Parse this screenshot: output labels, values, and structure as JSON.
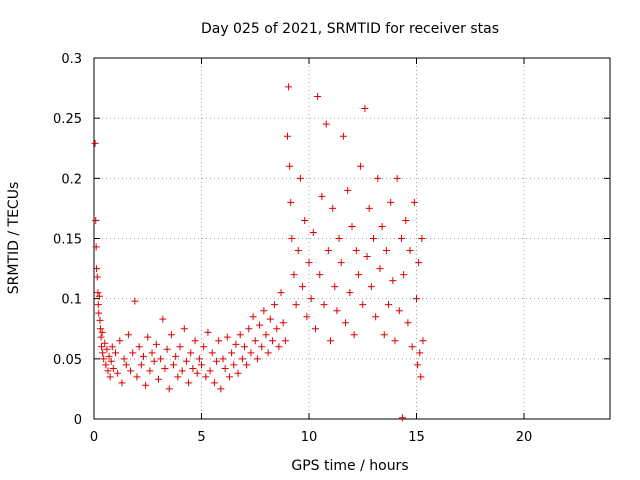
{
  "colors": {
    "series": "#e00000",
    "axis": "#000000",
    "grid": "#a0a0a0"
  },
  "chart_data": {
    "type": "scatter",
    "title": "Day 025 of 2021, SRMTID for receiver stas",
    "xlabel": "GPS time / hours",
    "ylabel": "SRMTID / TECUs",
    "xlim": [
      0,
      24
    ],
    "ylim": [
      0,
      0.3
    ],
    "x_ticks": [
      0,
      5,
      10,
      15,
      20
    ],
    "x_tick_labels": [
      "0",
      "5",
      "10",
      "15",
      "20"
    ],
    "y_ticks": [
      0,
      0.05,
      0.1,
      0.15,
      0.2,
      0.25,
      0.3
    ],
    "y_tick_labels": [
      "0",
      "0.05",
      "0.1",
      "0.15",
      "0.2",
      "0.25",
      "0.3"
    ],
    "grid": true,
    "marker": "plus",
    "series": [
      {
        "name": "SRMTID",
        "points": [
          [
            0.05,
            0.229
          ],
          [
            0.08,
            0.165
          ],
          [
            0.1,
            0.143
          ],
          [
            0.12,
            0.125
          ],
          [
            0.15,
            0.118
          ],
          [
            0.18,
            0.105
          ],
          [
            0.2,
            0.095
          ],
          [
            0.22,
            0.088
          ],
          [
            0.25,
            0.102
          ],
          [
            0.28,
            0.082
          ],
          [
            0.3,
            0.075
          ],
          [
            0.33,
            0.068
          ],
          [
            0.35,
            0.06
          ],
          [
            0.38,
            0.072
          ],
          [
            0.4,
            0.055
          ],
          [
            0.45,
            0.05
          ],
          [
            0.5,
            0.063
          ],
          [
            0.55,
            0.045
          ],
          [
            0.6,
            0.058
          ],
          [
            0.65,
            0.04
          ],
          [
            0.7,
            0.052
          ],
          [
            0.75,
            0.035
          ],
          [
            0.8,
            0.048
          ],
          [
            0.85,
            0.06
          ],
          [
            0.9,
            0.042
          ],
          [
            1.0,
            0.055
          ],
          [
            1.1,
            0.038
          ],
          [
            1.2,
            0.065
          ],
          [
            1.3,
            0.03
          ],
          [
            1.4,
            0.05
          ],
          [
            1.5,
            0.045
          ],
          [
            1.6,
            0.07
          ],
          [
            1.7,
            0.04
          ],
          [
            1.8,
            0.055
          ],
          [
            1.9,
            0.098
          ],
          [
            2.0,
            0.035
          ],
          [
            2.1,
            0.06
          ],
          [
            2.2,
            0.045
          ],
          [
            2.3,
            0.052
          ],
          [
            2.4,
            0.028
          ],
          [
            2.5,
            0.068
          ],
          [
            2.6,
            0.04
          ],
          [
            2.7,
            0.055
          ],
          [
            2.8,
            0.048
          ],
          [
            2.9,
            0.062
          ],
          [
            3.0,
            0.033
          ],
          [
            3.1,
            0.05
          ],
          [
            3.2,
            0.083
          ],
          [
            3.3,
            0.042
          ],
          [
            3.4,
            0.058
          ],
          [
            3.5,
            0.025
          ],
          [
            3.6,
            0.07
          ],
          [
            3.7,
            0.045
          ],
          [
            3.8,
            0.052
          ],
          [
            3.9,
            0.035
          ],
          [
            4.0,
            0.06
          ],
          [
            4.1,
            0.04
          ],
          [
            4.2,
            0.075
          ],
          [
            4.3,
            0.048
          ],
          [
            4.4,
            0.03
          ],
          [
            4.5,
            0.055
          ],
          [
            4.6,
            0.042
          ],
          [
            4.7,
            0.065
          ],
          [
            4.8,
            0.038
          ],
          [
            4.9,
            0.05
          ],
          [
            5.0,
            0.045
          ],
          [
            5.1,
            0.06
          ],
          [
            5.2,
            0.035
          ],
          [
            5.3,
            0.072
          ],
          [
            5.4,
            0.04
          ],
          [
            5.5,
            0.055
          ],
          [
            5.6,
            0.03
          ],
          [
            5.7,
            0.048
          ],
          [
            5.8,
            0.065
          ],
          [
            5.9,
            0.025
          ],
          [
            6.0,
            0.05
          ],
          [
            6.1,
            0.042
          ],
          [
            6.2,
            0.068
          ],
          [
            6.3,
            0.035
          ],
          [
            6.4,
            0.055
          ],
          [
            6.5,
            0.045
          ],
          [
            6.6,
            0.062
          ],
          [
            6.7,
            0.038
          ],
          [
            6.8,
            0.07
          ],
          [
            6.9,
            0.05
          ],
          [
            7.0,
            0.06
          ],
          [
            7.1,
            0.045
          ],
          [
            7.2,
            0.075
          ],
          [
            7.3,
            0.055
          ],
          [
            7.4,
            0.085
          ],
          [
            7.5,
            0.065
          ],
          [
            7.6,
            0.05
          ],
          [
            7.7,
            0.078
          ],
          [
            7.8,
            0.06
          ],
          [
            7.9,
            0.09
          ],
          [
            8.0,
            0.07
          ],
          [
            8.1,
            0.055
          ],
          [
            8.2,
            0.083
          ],
          [
            8.3,
            0.065
          ],
          [
            8.4,
            0.095
          ],
          [
            8.5,
            0.075
          ],
          [
            8.6,
            0.06
          ],
          [
            8.7,
            0.105
          ],
          [
            8.8,
            0.08
          ],
          [
            8.9,
            0.065
          ],
          [
            9.0,
            0.235
          ],
          [
            9.05,
            0.276
          ],
          [
            9.1,
            0.21
          ],
          [
            9.15,
            0.18
          ],
          [
            9.2,
            0.15
          ],
          [
            9.3,
            0.12
          ],
          [
            9.4,
            0.095
          ],
          [
            9.5,
            0.14
          ],
          [
            9.6,
            0.2
          ],
          [
            9.7,
            0.11
          ],
          [
            9.8,
            0.165
          ],
          [
            9.9,
            0.085
          ],
          [
            10.0,
            0.13
          ],
          [
            10.1,
            0.1
          ],
          [
            10.2,
            0.155
          ],
          [
            10.3,
            0.075
          ],
          [
            10.4,
            0.268
          ],
          [
            10.5,
            0.12
          ],
          [
            10.6,
            0.185
          ],
          [
            10.7,
            0.095
          ],
          [
            10.8,
            0.245
          ],
          [
            10.9,
            0.14
          ],
          [
            11.0,
            0.065
          ],
          [
            11.1,
            0.175
          ],
          [
            11.2,
            0.11
          ],
          [
            11.3,
            0.09
          ],
          [
            11.4,
            0.15
          ],
          [
            11.5,
            0.13
          ],
          [
            11.6,
            0.235
          ],
          [
            11.7,
            0.08
          ],
          [
            11.8,
            0.19
          ],
          [
            11.9,
            0.105
          ],
          [
            12.0,
            0.16
          ],
          [
            12.1,
            0.07
          ],
          [
            12.2,
            0.14
          ],
          [
            12.3,
            0.12
          ],
          [
            12.4,
            0.21
          ],
          [
            12.5,
            0.095
          ],
          [
            12.6,
            0.258
          ],
          [
            12.7,
            0.135
          ],
          [
            12.8,
            0.175
          ],
          [
            12.9,
            0.11
          ],
          [
            13.0,
            0.15
          ],
          [
            13.1,
            0.085
          ],
          [
            13.2,
            0.2
          ],
          [
            13.3,
            0.125
          ],
          [
            13.4,
            0.16
          ],
          [
            13.5,
            0.07
          ],
          [
            13.6,
            0.14
          ],
          [
            13.7,
            0.095
          ],
          [
            13.8,
            0.18
          ],
          [
            13.9,
            0.115
          ],
          [
            14.0,
            0.065
          ],
          [
            14.1,
            0.2
          ],
          [
            14.2,
            0.09
          ],
          [
            14.3,
            0.15
          ],
          [
            14.35,
            0.001
          ],
          [
            14.4,
            0.12
          ],
          [
            14.5,
            0.165
          ],
          [
            14.6,
            0.08
          ],
          [
            14.7,
            0.14
          ],
          [
            14.8,
            0.06
          ],
          [
            14.9,
            0.18
          ],
          [
            15.0,
            0.1
          ],
          [
            15.05,
            0.045
          ],
          [
            15.1,
            0.13
          ],
          [
            15.15,
            0.055
          ],
          [
            15.2,
            0.035
          ],
          [
            15.25,
            0.15
          ],
          [
            15.3,
            0.065
          ]
        ]
      }
    ]
  }
}
